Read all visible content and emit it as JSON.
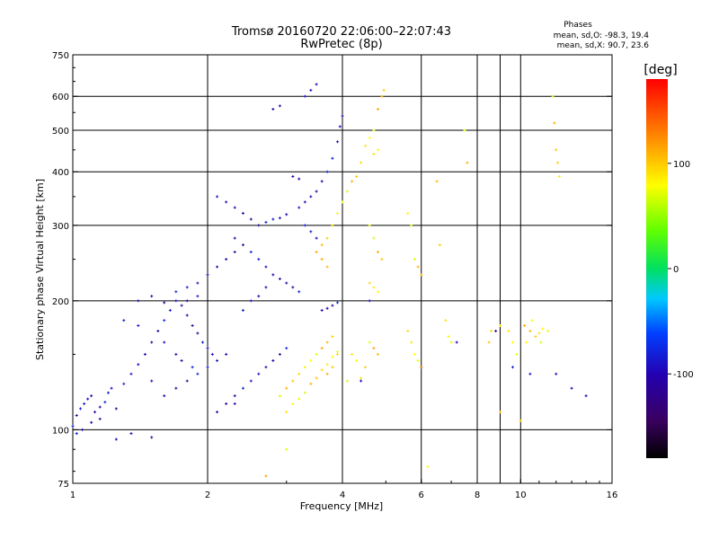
{
  "chart_data": {
    "type": "scatter",
    "title": "Tromsø 20160720 22:06:00–22:07:43",
    "subtitle": "RwPretec (8p)",
    "xlabel": "Frequency [MHz]",
    "ylabel": "Stationary phase Virtual Height [km]",
    "x_scale": "log2",
    "y_scale": "log",
    "xlim": [
      1,
      16
    ],
    "ylim": [
      75,
      750
    ],
    "x_ticks": [
      "1",
      "2",
      "4",
      "6",
      "8",
      "10",
      "16"
    ],
    "y_ticks": [
      "75",
      "100",
      "200",
      "300",
      "400",
      "500",
      "600",
      "750"
    ],
    "x_gridlines": [
      2,
      4,
      6,
      8,
      9,
      10
    ],
    "y_gridlines": [
      100,
      200,
      300,
      400,
      500,
      600
    ],
    "grid": true,
    "stats": {
      "heading": "Phases",
      "o_line": "mean, sd,O:  -98.3, 19.4",
      "x_line": "mean, sd,X:  90.7, 23.6"
    },
    "colorbar": {
      "label": "[deg]",
      "range": [
        -180,
        180
      ],
      "tick_values": [
        100,
        0,
        -100
      ],
      "tick_labels": [
        "100",
        "0",
        "-100"
      ]
    },
    "series": [
      {
        "mode": "O",
        "phase_mean": -98.3,
        "phase_sd": 19.4,
        "points": [
          [
            1.02,
            108
          ],
          [
            1.04,
            112
          ],
          [
            1.06,
            115
          ],
          [
            1.08,
            118
          ],
          [
            1.1,
            120
          ],
          [
            1.12,
            110
          ],
          [
            1.15,
            113
          ],
          [
            1.18,
            116
          ],
          [
            1.2,
            122
          ],
          [
            1.22,
            125
          ],
          [
            1.05,
            100
          ],
          [
            1.1,
            104
          ],
          [
            1.15,
            106
          ],
          [
            1.25,
            112
          ],
          [
            1.3,
            128
          ],
          [
            1.35,
            135
          ],
          [
            1.4,
            142
          ],
          [
            1.45,
            150
          ],
          [
            1.5,
            160
          ],
          [
            1.55,
            170
          ],
          [
            1.6,
            180
          ],
          [
            1.65,
            190
          ],
          [
            1.7,
            200
          ],
          [
            1.75,
            195
          ],
          [
            1.8,
            185
          ],
          [
            1.85,
            175
          ],
          [
            1.9,
            168
          ],
          [
            1.95,
            160
          ],
          [
            2.0,
            155
          ],
          [
            2.05,
            150
          ],
          [
            1.4,
            200
          ],
          [
            1.5,
            205
          ],
          [
            1.6,
            198
          ],
          [
            1.7,
            210
          ],
          [
            1.8,
            215
          ],
          [
            1.9,
            220
          ],
          [
            2.0,
            230
          ],
          [
            2.1,
            240
          ],
          [
            2.2,
            250
          ],
          [
            2.3,
            260
          ],
          [
            1.3,
            180
          ],
          [
            1.4,
            175
          ],
          [
            1.5,
            130
          ],
          [
            1.6,
            120
          ],
          [
            1.7,
            125
          ],
          [
            1.8,
            130
          ],
          [
            1.9,
            135
          ],
          [
            2.0,
            140
          ],
          [
            2.1,
            145
          ],
          [
            2.2,
            150
          ],
          [
            2.1,
            110
          ],
          [
            2.2,
            115
          ],
          [
            2.3,
            120
          ],
          [
            2.4,
            125
          ],
          [
            2.5,
            130
          ],
          [
            2.6,
            135
          ],
          [
            2.7,
            140
          ],
          [
            2.8,
            145
          ],
          [
            2.9,
            150
          ],
          [
            3.0,
            155
          ],
          [
            2.1,
            350
          ],
          [
            2.2,
            340
          ],
          [
            2.3,
            330
          ],
          [
            2.4,
            320
          ],
          [
            2.5,
            310
          ],
          [
            2.6,
            300
          ],
          [
            2.7,
            305
          ],
          [
            2.8,
            310
          ],
          [
            2.9,
            312
          ],
          [
            3.0,
            318
          ],
          [
            2.3,
            280
          ],
          [
            2.4,
            270
          ],
          [
            2.5,
            260
          ],
          [
            2.6,
            250
          ],
          [
            2.7,
            240
          ],
          [
            2.8,
            230
          ],
          [
            2.9,
            225
          ],
          [
            3.0,
            220
          ],
          [
            3.1,
            215
          ],
          [
            3.2,
            210
          ],
          [
            3.2,
            330
          ],
          [
            3.3,
            340
          ],
          [
            3.4,
            350
          ],
          [
            3.5,
            360
          ],
          [
            3.6,
            380
          ],
          [
            3.7,
            400
          ],
          [
            3.8,
            430
          ],
          [
            3.9,
            470
          ],
          [
            3.95,
            510
          ],
          [
            4.0,
            540
          ],
          [
            3.1,
            390
          ],
          [
            3.2,
            385
          ],
          [
            3.3,
            300
          ],
          [
            3.4,
            290
          ],
          [
            3.5,
            280
          ],
          [
            3.6,
            190
          ],
          [
            3.7,
            192
          ],
          [
            3.8,
            195
          ],
          [
            3.9,
            198
          ],
          [
            3.3,
            600
          ],
          [
            3.4,
            620
          ],
          [
            3.5,
            640
          ],
          [
            2.8,
            560
          ],
          [
            2.9,
            570
          ],
          [
            1.8,
            200
          ],
          [
            1.9,
            205
          ],
          [
            1.6,
            160
          ],
          [
            1.7,
            150
          ],
          [
            1.25,
            95
          ],
          [
            1.35,
            98
          ],
          [
            1.5,
            96
          ],
          [
            1.0,
            102
          ],
          [
            1.02,
            98
          ],
          [
            4.6,
            200
          ],
          [
            4.4,
            130
          ],
          [
            6.0,
            140
          ],
          [
            7.2,
            160
          ],
          [
            8.8,
            170
          ],
          [
            9.6,
            140
          ],
          [
            10.5,
            135
          ],
          [
            12.0,
            135
          ],
          [
            13.0,
            125
          ],
          [
            14.0,
            120
          ],
          [
            1.75,
            145
          ],
          [
            1.85,
            140
          ],
          [
            2.4,
            190
          ],
          [
            2.5,
            200
          ],
          [
            2.6,
            205
          ],
          [
            2.7,
            215
          ],
          [
            2.3,
            115
          ]
        ]
      },
      {
        "mode": "X",
        "phase_mean": 90.7,
        "phase_sd": 23.6,
        "points": [
          [
            2.9,
            120
          ],
          [
            3.0,
            125
          ],
          [
            3.1,
            130
          ],
          [
            3.2,
            135
          ],
          [
            3.3,
            140
          ],
          [
            3.4,
            145
          ],
          [
            3.5,
            150
          ],
          [
            3.6,
            155
          ],
          [
            3.7,
            160
          ],
          [
            3.8,
            165
          ],
          [
            3.0,
            110
          ],
          [
            3.1,
            115
          ],
          [
            3.2,
            118
          ],
          [
            3.3,
            122
          ],
          [
            3.4,
            128
          ],
          [
            3.5,
            132
          ],
          [
            3.6,
            138
          ],
          [
            3.7,
            142
          ],
          [
            3.8,
            148
          ],
          [
            3.9,
            152
          ],
          [
            3.5,
            260
          ],
          [
            3.6,
            270
          ],
          [
            3.7,
            280
          ],
          [
            3.8,
            300
          ],
          [
            3.9,
            320
          ],
          [
            4.0,
            340
          ],
          [
            4.1,
            360
          ],
          [
            4.2,
            380
          ],
          [
            4.3,
            390
          ],
          [
            4.4,
            420
          ],
          [
            4.5,
            460
          ],
          [
            4.6,
            480
          ],
          [
            4.7,
            500
          ],
          [
            4.8,
            560
          ],
          [
            4.9,
            600
          ],
          [
            4.95,
            620
          ],
          [
            4.7,
            440
          ],
          [
            4.8,
            450
          ],
          [
            4.6,
            300
          ],
          [
            4.7,
            280
          ],
          [
            4.8,
            260
          ],
          [
            4.9,
            250
          ],
          [
            4.6,
            220
          ],
          [
            4.7,
            215
          ],
          [
            4.8,
            210
          ],
          [
            4.6,
            160
          ],
          [
            4.7,
            155
          ],
          [
            4.8,
            150
          ],
          [
            4.5,
            140
          ],
          [
            4.4,
            132
          ],
          [
            5.6,
            320
          ],
          [
            5.7,
            300
          ],
          [
            5.8,
            250
          ],
          [
            5.9,
            240
          ],
          [
            6.0,
            230
          ],
          [
            5.6,
            170
          ],
          [
            5.7,
            160
          ],
          [
            5.8,
            150
          ],
          [
            5.9,
            145
          ],
          [
            6.0,
            140
          ],
          [
            6.5,
            380
          ],
          [
            6.6,
            270
          ],
          [
            6.8,
            180
          ],
          [
            6.9,
            165
          ],
          [
            7.0,
            160
          ],
          [
            7.5,
            500
          ],
          [
            7.6,
            420
          ],
          [
            8.5,
            160
          ],
          [
            8.6,
            170
          ],
          [
            9.0,
            175
          ],
          [
            9.6,
            160
          ],
          [
            9.8,
            150
          ],
          [
            10.2,
            175
          ],
          [
            10.5,
            170
          ],
          [
            10.8,
            165
          ],
          [
            11.0,
            168
          ],
          [
            11.2,
            172
          ],
          [
            11.5,
            170
          ],
          [
            11.8,
            600
          ],
          [
            11.9,
            520
          ],
          [
            12.0,
            450
          ],
          [
            12.1,
            420
          ],
          [
            12.2,
            390
          ],
          [
            6.2,
            82
          ],
          [
            3.0,
            90
          ],
          [
            2.7,
            78
          ],
          [
            9.0,
            110
          ],
          [
            10.0,
            105
          ],
          [
            9.4,
            170
          ],
          [
            10.3,
            160
          ],
          [
            10.6,
            180
          ],
          [
            11.1,
            160
          ],
          [
            3.7,
            135
          ],
          [
            3.8,
            140
          ],
          [
            3.9,
            150
          ],
          [
            4.2,
            150
          ],
          [
            4.3,
            145
          ],
          [
            4.1,
            130
          ],
          [
            3.6,
            250
          ],
          [
            3.7,
            240
          ]
        ]
      }
    ]
  }
}
